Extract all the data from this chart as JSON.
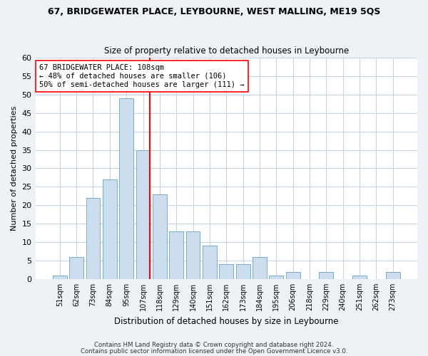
{
  "title": "67, BRIDGEWATER PLACE, LEYBOURNE, WEST MALLING, ME19 5QS",
  "subtitle": "Size of property relative to detached houses in Leybourne",
  "xlabel": "Distribution of detached houses by size in Leybourne",
  "ylabel": "Number of detached properties",
  "categories": [
    "51sqm",
    "62sqm",
    "73sqm",
    "84sqm",
    "95sqm",
    "107sqm",
    "118sqm",
    "129sqm",
    "140sqm",
    "151sqm",
    "162sqm",
    "173sqm",
    "184sqm",
    "195sqm",
    "206sqm",
    "218sqm",
    "229sqm",
    "240sqm",
    "251sqm",
    "262sqm",
    "273sqm"
  ],
  "values": [
    1,
    6,
    22,
    27,
    49,
    35,
    23,
    13,
    13,
    9,
    4,
    4,
    6,
    1,
    2,
    0,
    2,
    0,
    1,
    0,
    2
  ],
  "bar_color": "#ccdded",
  "bar_edge_color": "#7aaac8",
  "vline_index": 5,
  "vline_color": "red",
  "annotation_text": "67 BRIDGEWATER PLACE: 108sqm\n← 48% of detached houses are smaller (106)\n50% of semi-detached houses are larger (111) →",
  "annotation_box_color": "white",
  "annotation_box_edge": "red",
  "ylim": [
    0,
    60
  ],
  "yticks": [
    0,
    5,
    10,
    15,
    20,
    25,
    30,
    35,
    40,
    45,
    50,
    55,
    60
  ],
  "footer1": "Contains HM Land Registry data © Crown copyright and database right 2024.",
  "footer2": "Contains public sector information licensed under the Open Government Licence v3.0.",
  "bg_color": "#eef2f7",
  "plot_bg_color": "#ffffff",
  "grid_color": "#c8d4e0"
}
